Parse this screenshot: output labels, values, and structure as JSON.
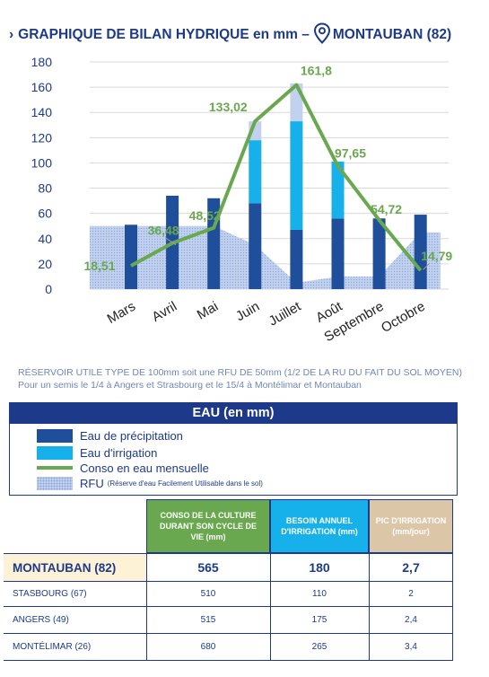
{
  "header": {
    "chevron": "›",
    "title_left": "GRAPHIQUE DE BILAN HYDRIQUE en mm –",
    "title_right": "MONTAUBAN (82)"
  },
  "colors": {
    "precip": "#1f4e9a",
    "irrig": "#16b1ea",
    "conso": "#6aa84f",
    "rfu_fill": "#c2d2ee",
    "title": "#1d3a8a",
    "header_green": "#6aa84f",
    "header_blue": "#16b1ea",
    "header_tan": "#dcc6a8",
    "highlight": "#fdf1d6"
  },
  "chart_data": {
    "type": "bar",
    "categories": [
      "Mars",
      "Avril",
      "Mai",
      "Juin",
      "Juillet",
      "Août",
      "Septembre",
      "Octobre"
    ],
    "ylim": [
      0,
      180
    ],
    "yticks": [
      0,
      20,
      40,
      60,
      80,
      100,
      120,
      140,
      160,
      180
    ],
    "grid": true,
    "series": [
      {
        "name": "Eau de précipitation",
        "type": "bar-stacked",
        "values": [
          51,
          74,
          72,
          68,
          47,
          56,
          56,
          59
        ]
      },
      {
        "name": "Eau d'irrigation",
        "type": "bar-stacked",
        "values": [
          0,
          0,
          0,
          50,
          86,
          45,
          0,
          0
        ]
      },
      {
        "name": "Conso en eau mensuelle",
        "type": "line",
        "values": [
          18.51,
          36.48,
          48.52,
          133.02,
          161.8,
          97.65,
          54.72,
          14.79
        ],
        "labels": [
          "18,51",
          "36,48",
          "48,52",
          "133,02",
          "161,8",
          "97,65",
          "54,72",
          "14,79"
        ]
      },
      {
        "name": "RFU",
        "type": "area",
        "values": [
          50,
          50,
          50,
          35,
          5,
          10,
          10,
          45
        ]
      }
    ],
    "caps": [
      0,
      0,
      0,
      15,
      30,
      0,
      0,
      0
    ]
  },
  "notes": [
    "RÉSERVOIR UTILE TYPE DE 100mm soit une RFU DE 50mm (1/2 DE LA RU DU FAIT DU SOL MOYEN)",
    "Pour un semis le 1/4 à Angers et Strasbourg et le 15/4 à Montélimar et Montauban"
  ],
  "legend": {
    "title": "EAU (en mm)",
    "items": [
      {
        "label": "Eau de précipitation"
      },
      {
        "label": "Eau d'irrigation"
      },
      {
        "label": "Conso en eau mensuelle"
      },
      {
        "label": "RFU",
        "small": "(Réserve d'eau Facilement Utilisable dans le sol)"
      }
    ]
  },
  "table": {
    "headers": [
      "CONSO DE LA CULTURE DURANT SON CYCLE DE VIE (mm)",
      "BESOIN ANNUEL D'IRRIGATION (mm)",
      "PIC D'IRRIGATION (mm/jour)"
    ],
    "rows": [
      {
        "city": "MONTAUBAN (82)",
        "conso": "565",
        "besoin": "180",
        "pic": "2,7"
      },
      {
        "city": "STASBOURG (67)",
        "conso": "510",
        "besoin": "110",
        "pic": "2"
      },
      {
        "city": "ANGERS (49)",
        "conso": "515",
        "besoin": "175",
        "pic": "2,4"
      },
      {
        "city": "MONTÉLIMAR (26)",
        "conso": "680",
        "besoin": "265",
        "pic": "3,4"
      }
    ]
  }
}
